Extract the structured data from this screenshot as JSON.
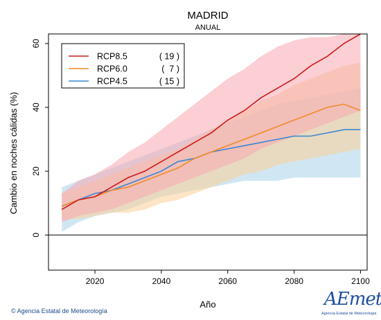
{
  "chart_data": {
    "type": "line",
    "title": "MADRID",
    "subtitle": "ANUAL",
    "xlabel": "Año",
    "ylabel": "Cambio en noches cálidas (%)",
    "xlim": [
      2006,
      2102
    ],
    "ylim": [
      -11,
      63
    ],
    "x_ticks": [
      2020,
      2040,
      2060,
      2080,
      2100
    ],
    "y_ticks": [
      0,
      20,
      40,
      60
    ],
    "zero_line": 0,
    "grid": false,
    "legend_position": "top-left",
    "x": [
      2010,
      2015,
      2020,
      2025,
      2030,
      2035,
      2040,
      2045,
      2050,
      2055,
      2060,
      2065,
      2070,
      2075,
      2080,
      2085,
      2090,
      2095,
      2100
    ],
    "series": [
      {
        "name": "RCP8.5",
        "count": "( 19 )",
        "color": "#cc1a1a",
        "band_color": "#f7a8b0",
        "values": [
          8,
          11,
          12,
          15,
          18,
          20,
          23,
          26,
          29,
          32,
          36,
          39,
          43,
          46,
          49,
          53,
          56,
          60,
          63
        ],
        "band_low": [
          4,
          6,
          7,
          8,
          10,
          12,
          14,
          16,
          18,
          20,
          22,
          24,
          27,
          29,
          31,
          33,
          35,
          37,
          39
        ],
        "band_high": [
          13,
          17,
          19,
          22,
          26,
          29,
          33,
          37,
          41,
          45,
          49,
          52,
          56,
          59,
          61,
          62,
          62,
          63,
          63
        ]
      },
      {
        "name": "RCP6.0",
        "count": "(  7 )",
        "color": "#f08a28",
        "band_color": "#fbcf96",
        "values": [
          9,
          11,
          12,
          14,
          15,
          17,
          19,
          21,
          24,
          26,
          28,
          30,
          32,
          34,
          36,
          38,
          40,
          41,
          39
        ],
        "band_low": [
          5,
          5,
          6,
          7,
          7,
          8,
          10,
          11,
          13,
          15,
          17,
          19,
          20,
          22,
          23,
          24,
          25,
          26,
          27
        ],
        "band_high": [
          13,
          15,
          17,
          19,
          21,
          23,
          25,
          27,
          30,
          33,
          36,
          39,
          42,
          44,
          47,
          49,
          51,
          53,
          54
        ]
      },
      {
        "name": "RCP4.5",
        "count": "( 15 )",
        "color": "#3a86d4",
        "band_color": "#a9d3ea",
        "values": [
          9,
          11,
          13,
          14,
          16,
          18,
          20,
          23,
          24,
          26,
          27,
          28,
          29,
          30,
          31,
          31,
          32,
          33,
          33
        ],
        "band_low": [
          1,
          4,
          6,
          7,
          8,
          10,
          12,
          13,
          14,
          15,
          16,
          17,
          17,
          17,
          18,
          18,
          18,
          18,
          18
        ],
        "band_high": [
          15,
          17,
          19,
          21,
          23,
          25,
          27,
          29,
          31,
          33,
          35,
          37,
          39,
          41,
          42,
          43,
          44,
          45,
          46
        ]
      }
    ]
  },
  "footer": {
    "copyright": "© Agencia Estatal de Meteorología",
    "logo_text": "AEmet",
    "logo_subtext": "Agencia Estatal de Meteorología"
  }
}
